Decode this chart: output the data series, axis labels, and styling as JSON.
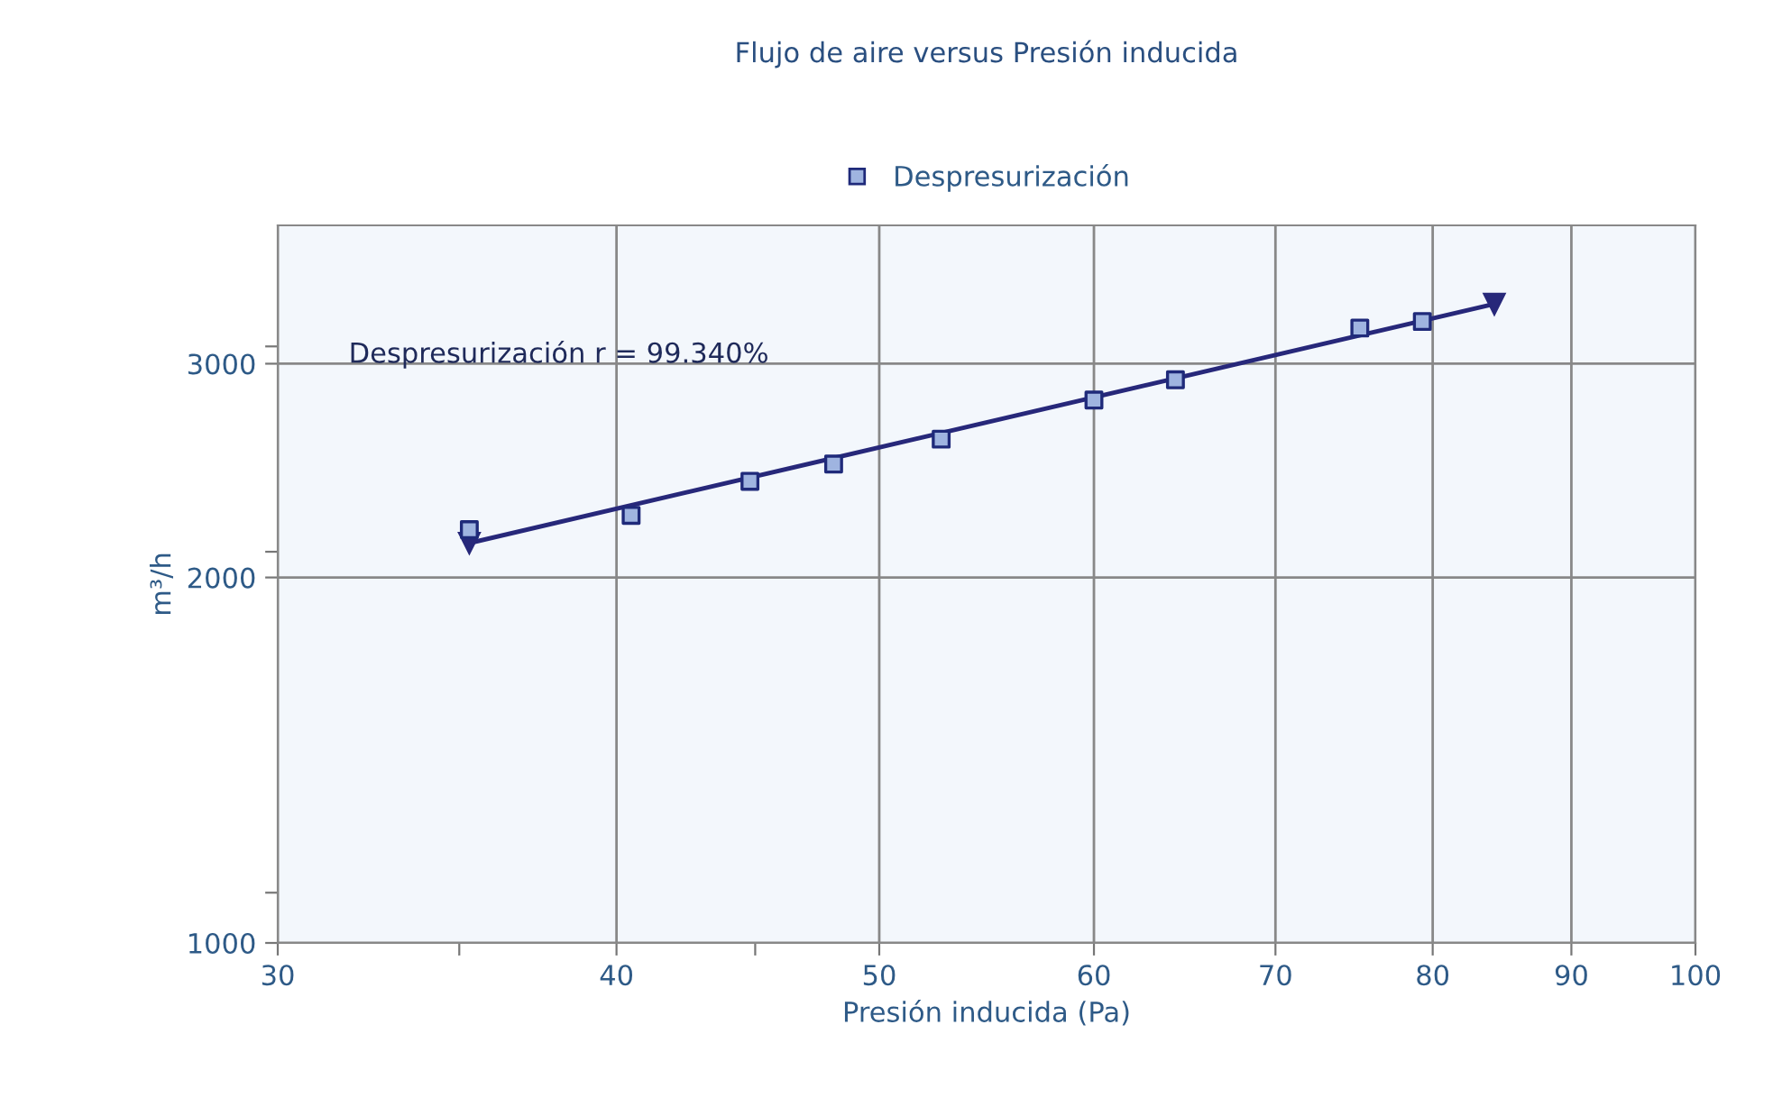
{
  "chart_data": {
    "type": "scatter",
    "title": "Flujo de aire versus Presión inducida",
    "xlabel": "Presión inducida (Pa)",
    "ylabel": "m³/h",
    "log": "xy",
    "xlim": [
      30,
      100
    ],
    "ylim": [
      1000,
      3900
    ],
    "xticks": [
      30,
      {
        "value": 35,
        "label": null
      },
      40,
      {
        "value": 45,
        "label": null
      },
      50,
      60,
      70,
      80,
      90,
      100
    ],
    "yticks": [
      1000,
      {
        "value": 1100,
        "label": null
      },
      2000,
      {
        "value": 2100,
        "label": null
      },
      3000,
      {
        "value": 3100,
        "label": null
      }
    ],
    "grid": true,
    "legend": "top",
    "annotations": [
      "Despresurización r = 99.340%"
    ],
    "series": [
      {
        "name": "Despresurización",
        "marker": "square",
        "color": "#1f2a7a",
        "x": [
          35.3,
          40.5,
          44.8,
          48.1,
          52.7,
          60.0,
          64.3,
          75.2,
          79.3
        ],
        "values": [
          2190,
          2250,
          2400,
          2480,
          2600,
          2800,
          2910,
          3210,
          3250
        ]
      },
      {
        "type": "line",
        "marker": "triangle",
        "color": "#27287a",
        "x": [
          35.3,
          84.3
        ],
        "values": [
          2135,
          3360
        ]
      }
    ]
  }
}
